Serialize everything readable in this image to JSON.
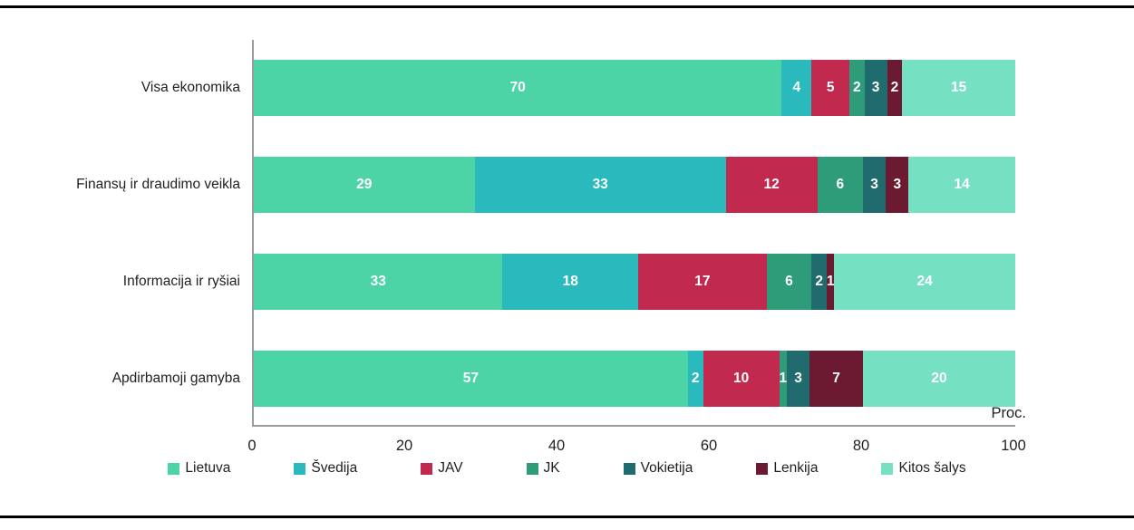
{
  "chart_data": {
    "type": "bar",
    "stacked": true,
    "orientation": "horizontal",
    "unit_label": "Proc.",
    "categories": [
      "Visa ekonomika",
      "Finansų ir draudimo veikla",
      "Informacija ir ryšiai",
      "Apdirbamoji gamyba"
    ],
    "series": [
      {
        "name": "Lietuva",
        "color": "#4DD4A6",
        "values": [
          70,
          29,
          33,
          57
        ]
      },
      {
        "name": "Švedija",
        "color": "#2ABABD",
        "values": [
          4,
          33,
          18,
          2
        ]
      },
      {
        "name": "JAV",
        "color": "#C1294E",
        "values": [
          5,
          12,
          17,
          10
        ]
      },
      {
        "name": "JK",
        "color": "#2E9C78",
        "values": [
          2,
          6,
          6,
          1
        ]
      },
      {
        "name": "Vokietija",
        "color": "#1F6B6E",
        "values": [
          3,
          3,
          2,
          3
        ]
      },
      {
        "name": "Lenkija",
        "color": "#6C1A32",
        "values": [
          2,
          3,
          1,
          7
        ]
      },
      {
        "name": "Kitos šalys",
        "color": "#75E0C2",
        "values": [
          15,
          14,
          24,
          20
        ]
      }
    ],
    "x_axis": {
      "min": 0,
      "max": 100,
      "ticks": [
        0,
        20,
        40,
        60,
        80,
        100
      ]
    },
    "legend_position": "bottom",
    "grid": false
  }
}
